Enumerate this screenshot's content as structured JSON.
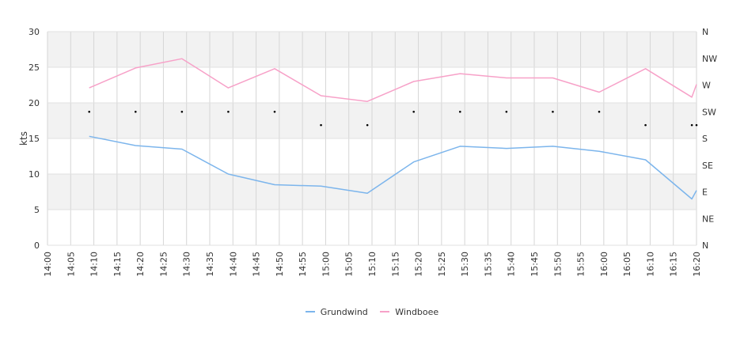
{
  "chart_data": {
    "type": "line",
    "ylabel": "kts",
    "ylim": [
      0,
      30
    ],
    "yticks": [
      "0",
      "5",
      "10",
      "15",
      "20",
      "25",
      "30"
    ],
    "direction_ticks": [
      "N",
      "NE",
      "E",
      "SE",
      "S",
      "SW",
      "W",
      "NW",
      "N"
    ],
    "xtick_labels": [
      "14:00",
      "14:05",
      "14:10",
      "14:15",
      "14:20",
      "14:25",
      "14:30",
      "14:35",
      "14:40",
      "14:45",
      "14:50",
      "14:55",
      "15:00",
      "15:05",
      "15:10",
      "15:15",
      "15:20",
      "15:25",
      "15:30",
      "15:35",
      "15:40",
      "15:45",
      "15:50",
      "15:55",
      "16:00",
      "16:05",
      "16:10",
      "16:15",
      "16:20"
    ],
    "grid": true,
    "legend_position": "bottom",
    "series": [
      {
        "name": "Grundwind",
        "color": "#7cb5ec",
        "points": [
          [
            "14:09",
            15.3
          ],
          [
            "14:19",
            14.0
          ],
          [
            "14:29",
            13.5
          ],
          [
            "14:39",
            10.0
          ],
          [
            "14:49",
            8.5
          ],
          [
            "14:59",
            8.3
          ],
          [
            "15:09",
            7.3
          ],
          [
            "15:19",
            11.7
          ],
          [
            "15:29",
            13.9
          ],
          [
            "15:39",
            13.6
          ],
          [
            "15:49",
            13.9
          ],
          [
            "15:59",
            13.2
          ],
          [
            "16:09",
            12.0
          ],
          [
            "16:19",
            6.5
          ],
          [
            "16:20",
            7.7
          ]
        ]
      },
      {
        "name": "Windboee",
        "color": "#f7a1c8",
        "points": [
          [
            "14:09",
            22.1
          ],
          [
            "14:19",
            24.9
          ],
          [
            "14:29",
            26.2
          ],
          [
            "14:39",
            22.1
          ],
          [
            "14:49",
            24.8
          ],
          [
            "14:59",
            21.0
          ],
          [
            "15:09",
            20.2
          ],
          [
            "15:19",
            23.0
          ],
          [
            "15:29",
            24.1
          ],
          [
            "15:39",
            23.5
          ],
          [
            "15:49",
            23.5
          ],
          [
            "15:59",
            21.5
          ],
          [
            "16:09",
            24.8
          ],
          [
            "16:19",
            20.8
          ],
          [
            "16:20",
            22.6
          ]
        ]
      }
    ],
    "direction_series": {
      "name": "Wind direction",
      "color": "#000000",
      "points": [
        [
          "14:09",
          "SW"
        ],
        [
          "14:19",
          "SW"
        ],
        [
          "14:29",
          "SW"
        ],
        [
          "14:39",
          "SW"
        ],
        [
          "14:49",
          "SW"
        ],
        [
          "14:59",
          "SSW"
        ],
        [
          "15:09",
          "SSW"
        ],
        [
          "15:19",
          "SW"
        ],
        [
          "15:29",
          "SW"
        ],
        [
          "15:39",
          "SW"
        ],
        [
          "15:49",
          "SW"
        ],
        [
          "15:59",
          "SW"
        ],
        [
          "16:09",
          "SSW"
        ],
        [
          "16:19",
          "SSW"
        ],
        [
          "16:20",
          "SSW"
        ]
      ]
    }
  }
}
